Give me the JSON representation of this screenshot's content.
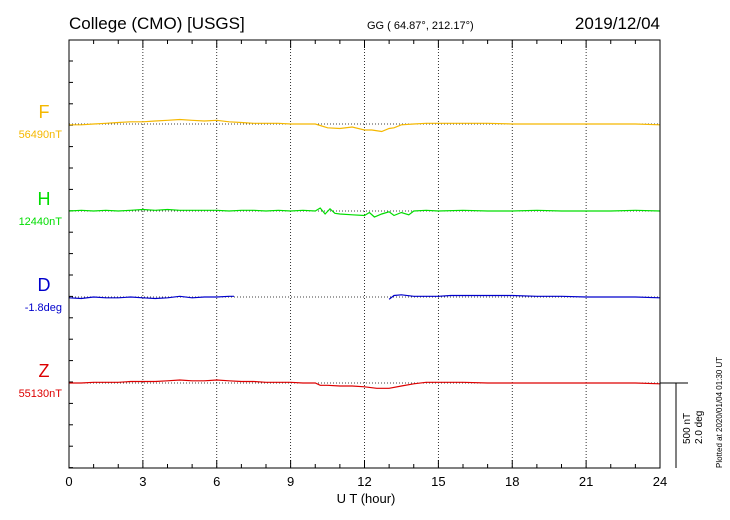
{
  "header": {
    "title": "College (CMO)  [USGS]",
    "coords": "GG ( 64.87°, 212.17°)",
    "date": "2019/12/04"
  },
  "side_note": "Plotted at 2020/01/04 01:30 UT",
  "scale": {
    "line1": "500 nT",
    "line2": "2.0 deg"
  },
  "chart_data": {
    "type": "line",
    "xlabel": "U T (hour)",
    "xlim": [
      0,
      24
    ],
    "xticks": [
      0,
      3,
      6,
      9,
      12,
      15,
      18,
      21,
      24
    ],
    "grid": true,
    "series": [
      {
        "name": "F",
        "baseline": "56490nT",
        "color": "#f5b800",
        "x": [
          0,
          0.5,
          1,
          1.5,
          2,
          2.5,
          3,
          3.5,
          4,
          4.5,
          5,
          5.5,
          6,
          6.5,
          7,
          7.5,
          8,
          8.5,
          9,
          9.5,
          10,
          10.2,
          10.5,
          11,
          11.5,
          12,
          12.3,
          12.7,
          13,
          13.2,
          13.5,
          14,
          14.5,
          15,
          16,
          17,
          18,
          19,
          20,
          21,
          22,
          23,
          24
        ],
        "y": [
          -1,
          -1,
          0,
          1,
          2,
          3,
          3,
          4,
          5,
          6,
          5,
          4,
          5,
          3,
          2,
          1,
          1,
          1,
          0,
          0,
          0,
          -2,
          -5,
          -6,
          -4,
          -8,
          -8,
          -10,
          -6,
          -5,
          -1,
          0,
          1,
          1,
          1,
          1,
          0,
          0,
          0,
          0,
          0,
          0,
          -1
        ]
      },
      {
        "name": "H",
        "baseline": "12440nT",
        "color": "#00dd00",
        "x": [
          0,
          0.5,
          1,
          1.5,
          2,
          2.5,
          3,
          3.5,
          4,
          4.5,
          5,
          5.5,
          6,
          6.5,
          7,
          7.5,
          8,
          8.5,
          9,
          9.5,
          10,
          10.2,
          10.4,
          10.6,
          10.8,
          11,
          11.5,
          12,
          12.2,
          12.4,
          12.7,
          13,
          13.2,
          13.5,
          13.8,
          14,
          14.5,
          15,
          16,
          17,
          18,
          19,
          20,
          21,
          22,
          23,
          24
        ],
        "y": [
          0,
          1,
          0,
          1,
          0,
          1,
          2,
          1,
          2,
          1,
          1,
          1,
          1,
          0,
          1,
          1,
          0,
          1,
          0,
          1,
          0,
          4,
          -4,
          3,
          -3,
          -4,
          -5,
          -6,
          -2,
          -8,
          -4,
          -1,
          -6,
          -2,
          -5,
          0,
          1,
          0,
          1,
          0,
          0,
          1,
          0,
          0,
          0,
          1,
          0
        ]
      },
      {
        "name": "D",
        "baseline": "-1.8deg",
        "color": "#0000cc",
        "segments": [
          {
            "x": [
              0,
              0.5,
              1,
              1.5,
              2,
              2.5,
              3,
              3.5,
              4,
              4.5,
              5,
              5.5,
              6,
              6.5,
              6.7
            ],
            "y": [
              -1,
              -2,
              0,
              -1,
              -1,
              0,
              -1,
              -2,
              -1,
              1,
              -1,
              0,
              0,
              1,
              1
            ]
          },
          {
            "x": [
              13,
              13.2,
              13.5,
              14,
              14.5,
              15,
              15.5,
              16,
              17,
              18,
              19,
              20,
              21,
              22,
              23,
              24
            ],
            "y": [
              -3,
              2,
              3,
              1,
              1,
              1,
              2,
              2,
              2,
              2,
              1,
              1,
              0,
              0,
              0,
              -1
            ]
          }
        ]
      },
      {
        "name": "Z",
        "baseline": "55130nT",
        "color": "#dd0000",
        "x": [
          0,
          0.5,
          1,
          1.5,
          2,
          2.5,
          3,
          3.5,
          4,
          4.5,
          5,
          5.5,
          6,
          6.5,
          7,
          7.5,
          8,
          8.5,
          9,
          9.5,
          10,
          10.2,
          10.5,
          11,
          11.5,
          12,
          12.5,
          13,
          13.5,
          14,
          14.5,
          15,
          16,
          17,
          18,
          19,
          20,
          21,
          22,
          23,
          24
        ],
        "y": [
          0,
          0,
          1,
          1,
          1,
          2,
          2,
          2,
          3,
          4,
          3,
          3,
          4,
          3,
          2,
          2,
          1,
          1,
          1,
          0,
          0,
          -3,
          -3,
          -4,
          -4,
          -5,
          -7,
          -7,
          -4,
          -1,
          1,
          1,
          1,
          0,
          0,
          0,
          0,
          0,
          0,
          0,
          -1
        ]
      }
    ]
  }
}
